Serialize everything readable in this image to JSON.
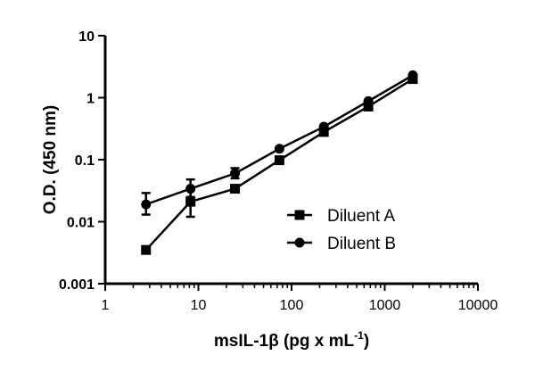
{
  "chart_data": {
    "type": "line",
    "title": "",
    "xlabel": "msIL-1β (pg x mL",
    "xlabel_sup": "-1",
    "xlabel_close": ")",
    "ylabel": "O.D. (450 nm)",
    "xscale": "log",
    "yscale": "log",
    "xlim": [
      1,
      10000
    ],
    "ylim": [
      0.001,
      10
    ],
    "xticks": [
      "1",
      "10",
      "100",
      "1000",
      "10000"
    ],
    "yticks": [
      "0.001",
      "0.01",
      "0.1",
      "1",
      "10"
    ],
    "grid": false,
    "legend_position": "center-right",
    "x": [
      2.74,
      8.23,
      24.7,
      74.1,
      222,
      667,
      2000
    ],
    "series": [
      {
        "name": "Diluent A",
        "marker": "square",
        "values": [
          0.0035,
          0.021,
          0.034,
          0.098,
          0.28,
          0.72,
          2.0
        ],
        "error_low": [
          0.0031,
          0.012,
          0.031,
          0.094,
          0.27,
          0.69,
          1.95
        ],
        "error_high": [
          0.0039,
          0.032,
          0.037,
          0.102,
          0.29,
          0.75,
          2.05
        ]
      },
      {
        "name": "Diluent B",
        "marker": "circle",
        "values": [
          0.019,
          0.034,
          0.06,
          0.15,
          0.34,
          0.88,
          2.3
        ],
        "error_low": [
          0.013,
          0.025,
          0.05,
          0.145,
          0.33,
          0.85,
          2.25
        ],
        "error_high": [
          0.029,
          0.048,
          0.073,
          0.155,
          0.35,
          0.91,
          2.35
        ]
      }
    ],
    "color": "#000000"
  }
}
